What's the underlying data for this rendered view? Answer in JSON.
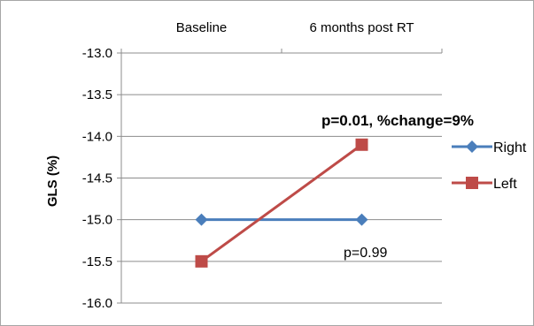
{
  "chart_data": {
    "type": "line",
    "categories": [
      "Baseline",
      "6 months post RT"
    ],
    "series": [
      {
        "name": "Right",
        "values": [
          -15.0,
          -15.0
        ],
        "color": "#4a7ebb",
        "marker": "diamond"
      },
      {
        "name": "Left",
        "values": [
          -15.5,
          -14.1
        ],
        "color": "#be4b48",
        "marker": "square"
      }
    ],
    "ylabel": "GLS (%)",
    "xlabel": "",
    "ylim": [
      -16.0,
      -13.0
    ],
    "y_ticks": [
      "-13.0",
      "-13.5",
      "-14.0",
      "-14.5",
      "-15.0",
      "-15.5",
      "-16.0"
    ],
    "y_tick_values": [
      -13.0,
      -13.5,
      -14.0,
      -14.5,
      -15.0,
      -15.5,
      -16.0
    ],
    "x_axis_position": "top",
    "grid": true,
    "legend_position": "right",
    "annotations": {
      "left_change": "p=0.01, %change=9%",
      "right_change": "p=0.99"
    }
  }
}
